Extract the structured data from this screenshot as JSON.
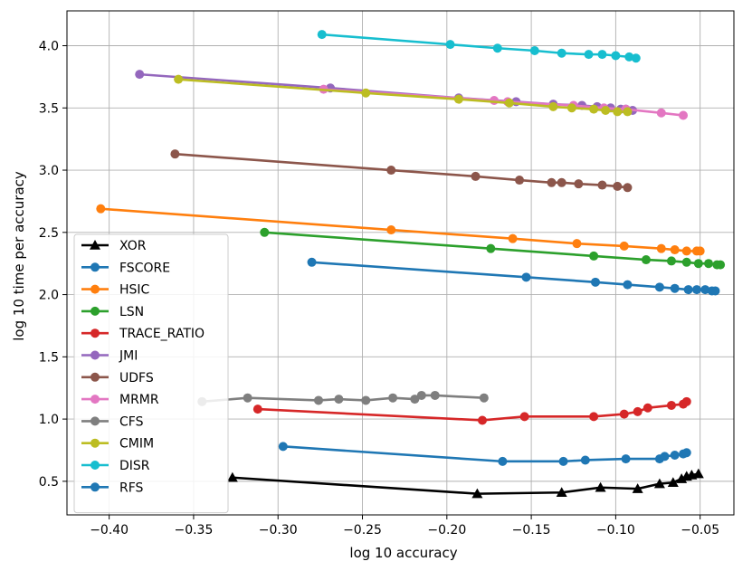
{
  "chart_data": {
    "type": "line",
    "title": "",
    "xlabel": "log 10 accuracy",
    "ylabel": "log 10 time per accuracy",
    "xlim": [
      -0.425,
      -0.03
    ],
    "ylim": [
      0.23,
      4.28
    ],
    "xticks": [
      -0.4,
      -0.35,
      -0.3,
      -0.25,
      -0.2,
      -0.15,
      -0.1,
      -0.05
    ],
    "xtick_labels": [
      "−0.40",
      "−0.35",
      "−0.30",
      "−0.25",
      "−0.20",
      "−0.15",
      "−0.10",
      "−0.05"
    ],
    "yticks": [
      0.5,
      1.0,
      1.5,
      2.0,
      2.5,
      3.0,
      3.5,
      4.0
    ],
    "ytick_labels": [
      "0.5",
      "1.0",
      "1.5",
      "2.0",
      "2.5",
      "3.0",
      "3.5",
      "4.0"
    ],
    "grid": true,
    "legend_position": "lower-left",
    "series": [
      {
        "name": "XOR",
        "color": "#000000",
        "marker": "triangle",
        "x": [
          -0.327,
          -0.182,
          -0.132,
          -0.109,
          -0.087,
          -0.074,
          -0.066,
          -0.061,
          -0.058,
          -0.055,
          -0.051
        ],
        "y": [
          0.53,
          0.4,
          0.41,
          0.45,
          0.44,
          0.48,
          0.49,
          0.52,
          0.54,
          0.55,
          0.56
        ]
      },
      {
        "name": "FSCORE",
        "color": "#1f77b4",
        "marker": "circle",
        "x": [
          -0.28,
          -0.153,
          -0.112,
          -0.093,
          -0.074,
          -0.065,
          -0.057,
          -0.052,
          -0.047,
          -0.043,
          -0.041
        ],
        "y": [
          2.26,
          2.14,
          2.1,
          2.08,
          2.06,
          2.05,
          2.04,
          2.04,
          2.04,
          2.03,
          2.03
        ]
      },
      {
        "name": "HSIC",
        "color": "#ff7f0e",
        "marker": "circle",
        "x": [
          -0.405,
          -0.233,
          -0.161,
          -0.123,
          -0.095,
          -0.073,
          -0.065,
          -0.058,
          -0.052,
          -0.05
        ],
        "y": [
          2.69,
          2.52,
          2.45,
          2.41,
          2.39,
          2.37,
          2.36,
          2.35,
          2.35,
          2.35
        ]
      },
      {
        "name": "LSN",
        "color": "#2ca02c",
        "marker": "circle",
        "x": [
          -0.308,
          -0.174,
          -0.113,
          -0.082,
          -0.067,
          -0.058,
          -0.051,
          -0.045,
          -0.04,
          -0.038
        ],
        "y": [
          2.5,
          2.37,
          2.31,
          2.28,
          2.27,
          2.26,
          2.25,
          2.25,
          2.24,
          2.24
        ]
      },
      {
        "name": "TRACE_RATIO",
        "color": "#d62728",
        "marker": "circle",
        "x": [
          -0.312,
          -0.179,
          -0.154,
          -0.113,
          -0.095,
          -0.087,
          -0.081,
          -0.067,
          -0.06,
          -0.058
        ],
        "y": [
          1.08,
          0.99,
          1.02,
          1.02,
          1.04,
          1.06,
          1.09,
          1.11,
          1.12,
          1.14
        ]
      },
      {
        "name": "JMI",
        "color": "#9467bd",
        "marker": "circle",
        "x": [
          -0.382,
          -0.269,
          -0.193,
          -0.159,
          -0.137,
          -0.12,
          -0.111,
          -0.103,
          -0.097,
          -0.094,
          -0.09
        ],
        "y": [
          3.77,
          3.66,
          3.58,
          3.55,
          3.53,
          3.52,
          3.51,
          3.5,
          3.49,
          3.49,
          3.48
        ]
      },
      {
        "name": "UDFS",
        "color": "#8c564b",
        "marker": "circle",
        "x": [
          -0.361,
          -0.233,
          -0.183,
          -0.157,
          -0.138,
          -0.132,
          -0.122,
          -0.108,
          -0.099,
          -0.093
        ],
        "y": [
          3.13,
          3.0,
          2.95,
          2.92,
          2.9,
          2.9,
          2.89,
          2.88,
          2.87,
          2.86
        ]
      },
      {
        "name": "MRMR",
        "color": "#e377c2",
        "marker": "circle",
        "x": [
          -0.273,
          -0.172,
          -0.164,
          -0.125,
          -0.107,
          -0.094,
          -0.073,
          -0.06
        ],
        "y": [
          3.65,
          3.56,
          3.55,
          3.52,
          3.5,
          3.49,
          3.46,
          3.44
        ]
      },
      {
        "name": "CFS",
        "color": "#7f7f7f",
        "marker": "circle",
        "x": [
          -0.345,
          -0.318,
          -0.276,
          -0.264,
          -0.248,
          -0.232,
          -0.219,
          -0.215,
          -0.207,
          -0.178
        ],
        "y": [
          1.14,
          1.17,
          1.15,
          1.16,
          1.15,
          1.17,
          1.16,
          1.19,
          1.19,
          1.17
        ]
      },
      {
        "name": "CMIM",
        "color": "#bcbd22",
        "marker": "circle",
        "x": [
          -0.359,
          -0.248,
          -0.193,
          -0.163,
          -0.137,
          -0.126,
          -0.113,
          -0.106,
          -0.099,
          -0.093
        ],
        "y": [
          3.73,
          3.62,
          3.57,
          3.54,
          3.51,
          3.5,
          3.49,
          3.48,
          3.47,
          3.47
        ]
      },
      {
        "name": "DISR",
        "color": "#17becf",
        "marker": "circle",
        "x": [
          -0.274,
          -0.198,
          -0.17,
          -0.148,
          -0.132,
          -0.116,
          -0.108,
          -0.1,
          -0.092,
          -0.088
        ],
        "y": [
          4.09,
          4.01,
          3.98,
          3.96,
          3.94,
          3.93,
          3.93,
          3.92,
          3.91,
          3.9
        ]
      },
      {
        "name": "RFS",
        "color": "#1f77b4",
        "marker": "circle",
        "x": [
          -0.297,
          -0.167,
          -0.131,
          -0.118,
          -0.094,
          -0.074,
          -0.071,
          -0.065,
          -0.06,
          -0.058
        ],
        "y": [
          0.78,
          0.66,
          0.66,
          0.67,
          0.68,
          0.68,
          0.7,
          0.71,
          0.72,
          0.73
        ]
      }
    ]
  }
}
